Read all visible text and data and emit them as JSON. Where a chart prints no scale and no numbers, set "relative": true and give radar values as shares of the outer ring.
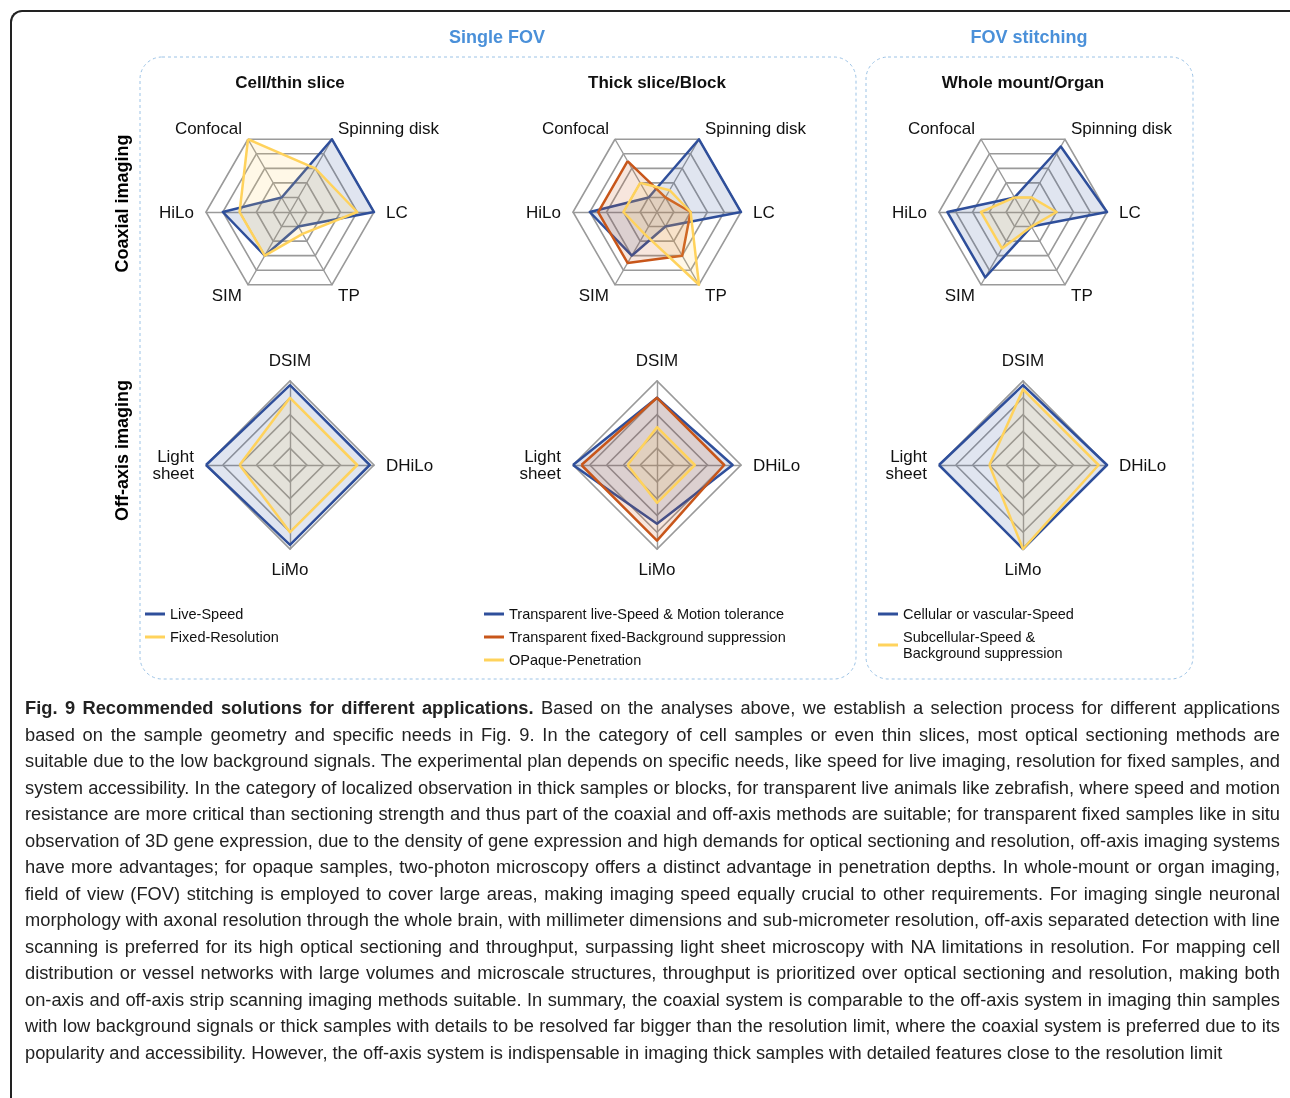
{
  "chart_data": [
    {
      "type": "other",
      "annotations": [
        "Single FOV",
        "FOV stitching",
        "Coaxial imaging",
        "Off-axis imaging"
      ]
    },
    {
      "type": "radar",
      "title": "Cell/thin slice",
      "relative": true,
      "categories": [
        "Spinning disk",
        "LC",
        "TP",
        "SIM",
        "HiLo",
        "Confocal"
      ],
      "legend": false,
      "series": [
        {
          "color": "#2f4f9b",
          "values": [
            1.0,
            1.0,
            0.2,
            0.6,
            0.8,
            0.2
          ]
        },
        {
          "color": "#ffd35c",
          "values": [
            0.6,
            0.8,
            0.3,
            0.6,
            0.6,
            1.0
          ]
        }
      ]
    },
    {
      "type": "radar",
      "title": "Thick slice/Block",
      "relative": true,
      "categories": [
        "Spinning disk",
        "LC",
        "TP",
        "SIM",
        "HiLo",
        "Confocal"
      ],
      "legend": false,
      "series": [
        {
          "color": "#2f4f9b",
          "values": [
            1.0,
            1.0,
            0.2,
            0.6,
            0.8,
            0.2
          ]
        },
        {
          "color": "#c8561a",
          "values": [
            0.2,
            0.4,
            0.6,
            0.7,
            0.7,
            0.7
          ]
        },
        {
          "color": "#ffd35c",
          "values": [
            0.3,
            0.4,
            1.0,
            0.3,
            0.4,
            0.4
          ]
        }
      ]
    },
    {
      "type": "radar",
      "title": "Whole mount/Organ",
      "relative": true,
      "categories": [
        "Spinning disk",
        "LC",
        "TP",
        "SIM",
        "HiLo",
        "Confocal"
      ],
      "legend": false,
      "series": [
        {
          "color": "#2f4f9b",
          "values": [
            0.9,
            1.0,
            0.2,
            0.9,
            0.9,
            0.2
          ]
        },
        {
          "color": "#ffd35c",
          "values": [
            0.2,
            0.4,
            0.2,
            0.5,
            0.5,
            0.2
          ]
        }
      ]
    },
    {
      "type": "radar",
      "relative": true,
      "categories": [
        "DSIM",
        "DHiLo",
        "LiMo",
        "Light sheet"
      ],
      "legend": "bottom",
      "series": [
        {
          "name": "Live-Speed",
          "color": "#2f4f9b",
          "values": [
            0.95,
            0.95,
            0.95,
            1.0
          ]
        },
        {
          "name": "Fixed-Resolution",
          "color": "#ffd35c",
          "values": [
            0.8,
            0.8,
            0.8,
            0.6
          ]
        }
      ]
    },
    {
      "type": "radar",
      "relative": true,
      "categories": [
        "DSIM",
        "DHiLo",
        "LiMo",
        "Light sheet"
      ],
      "legend": "bottom",
      "series": [
        {
          "name": "Transparent live-Speed & Motion tolerance",
          "color": "#2f4f9b",
          "values": [
            0.8,
            0.9,
            0.7,
            1.0
          ]
        },
        {
          "name": "Transparent fixed-Background suppression",
          "color": "#c8561a",
          "values": [
            0.8,
            0.8,
            0.9,
            0.9
          ]
        },
        {
          "name": "OPaque-Penetration",
          "color": "#ffd35c",
          "values": [
            0.45,
            0.45,
            0.45,
            0.35
          ]
        }
      ]
    },
    {
      "type": "radar",
      "relative": true,
      "categories": [
        "DSIM",
        "DHiLo",
        "LiMo",
        "Light sheet"
      ],
      "legend": "bottom",
      "series": [
        {
          "name": "Cellular or vascular-Speed",
          "color": "#2f4f9b",
          "values": [
            0.95,
            1.0,
            1.0,
            1.0
          ]
        },
        {
          "name": "Subcellular-Speed & Background suppression",
          "color": "#ffd35c",
          "values": [
            0.9,
            0.9,
            1.0,
            0.4
          ]
        }
      ]
    },
    {
      "type": "other",
      "title": "Fig. 9 Recommended solutions for different applications.",
      "annotations": [
        "Based on the analyses above, we establish a selection process for different applications based on the sample geometry and specific needs in Fig. 9. In the category of cell samples or even thin slices, most optical sectioning methods are suitable due to the low background signals. The experimental plan depends on specific needs, like speed for live imaging, resolution for fixed samples, and system accessibility. In the category of localized observation in thick samples or blocks, for transparent live animals like zebrafish, where speed and motion resistance are more critical than sectioning strength and thus part of the coaxial and off-axis methods are suitable; for transparent fixed samples like in situ observation of 3D gene expression, due to the density of gene expression and high demands for optical sectioning and resolution, off-axis imaging systems have more advantages; for opaque samples, two-photon microscopy offers a distinct advantage in penetration depths. In whole-mount or organ imaging, field of view (FOV) stitching is employed to cover large areas, making imaging speed equally crucial to other requirements. For imaging single neuronal morphology with axonal resolution through the whole brain, with millimeter dimensions and sub-micrometer resolution, off-axis separated detection with line scanning is preferred for its high optical sectioning and throughput, surpassing light sheet microscopy with NA limitations in resolution. For mapping cell distribution or vessel networks with large volumes and microscale structures, throughput is prioritized over optical sectioning and resolution, making both on-axis and off-axis strip scanning imaging methods suitable. In summary, the coaxial system is comparable to the off-axis system in imaging thin samples with low background signals or thick samples with details to be resolved far bigger than the resolution limit, where the coaxial system is preferred due to its popularity and accessibility. However, the off-axis system is indispensable in imaging thick samples with detailed features close to the resolution limit"
      ]
    }
  ]
}
